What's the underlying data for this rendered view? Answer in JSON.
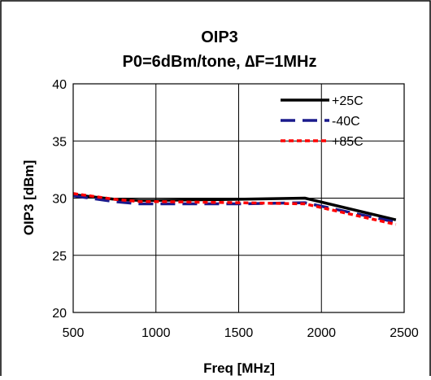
{
  "chart_data": {
    "type": "line",
    "title": "OIP3",
    "subtitle": "P0=6dBm/tone, ∆F=1MHz",
    "xlabel": "Freq [MHz]",
    "ylabel": "OIP3 [dBm]",
    "xlim": [
      500,
      2500
    ],
    "ylim": [
      20,
      40
    ],
    "xticks": [
      500,
      1000,
      1500,
      2000,
      2500
    ],
    "yticks": [
      20,
      25,
      30,
      35,
      40
    ],
    "grid": true,
    "legend_position": "top-right",
    "series": [
      {
        "name": "+25C",
        "color": "#000000",
        "dash": "solid",
        "x": [
          500,
          750,
          900,
          1000,
          1500,
          1900,
          2450
        ],
        "y": [
          30.3,
          29.9,
          29.8,
          29.8,
          29.9,
          30.0,
          28.1
        ]
      },
      {
        "name": "-40C",
        "color": "#1a1a8c",
        "dash": "long-dash",
        "x": [
          500,
          750,
          900,
          1000,
          1500,
          1900,
          2450
        ],
        "y": [
          30.2,
          29.7,
          29.5,
          29.5,
          29.5,
          29.6,
          27.9
        ]
      },
      {
        "name": "+85C",
        "color": "#ff0000",
        "dash": "short-dash",
        "x": [
          500,
          750,
          900,
          1000,
          1500,
          1900,
          2450
        ],
        "y": [
          30.4,
          29.9,
          29.7,
          29.7,
          29.6,
          29.5,
          27.7
        ]
      }
    ]
  }
}
